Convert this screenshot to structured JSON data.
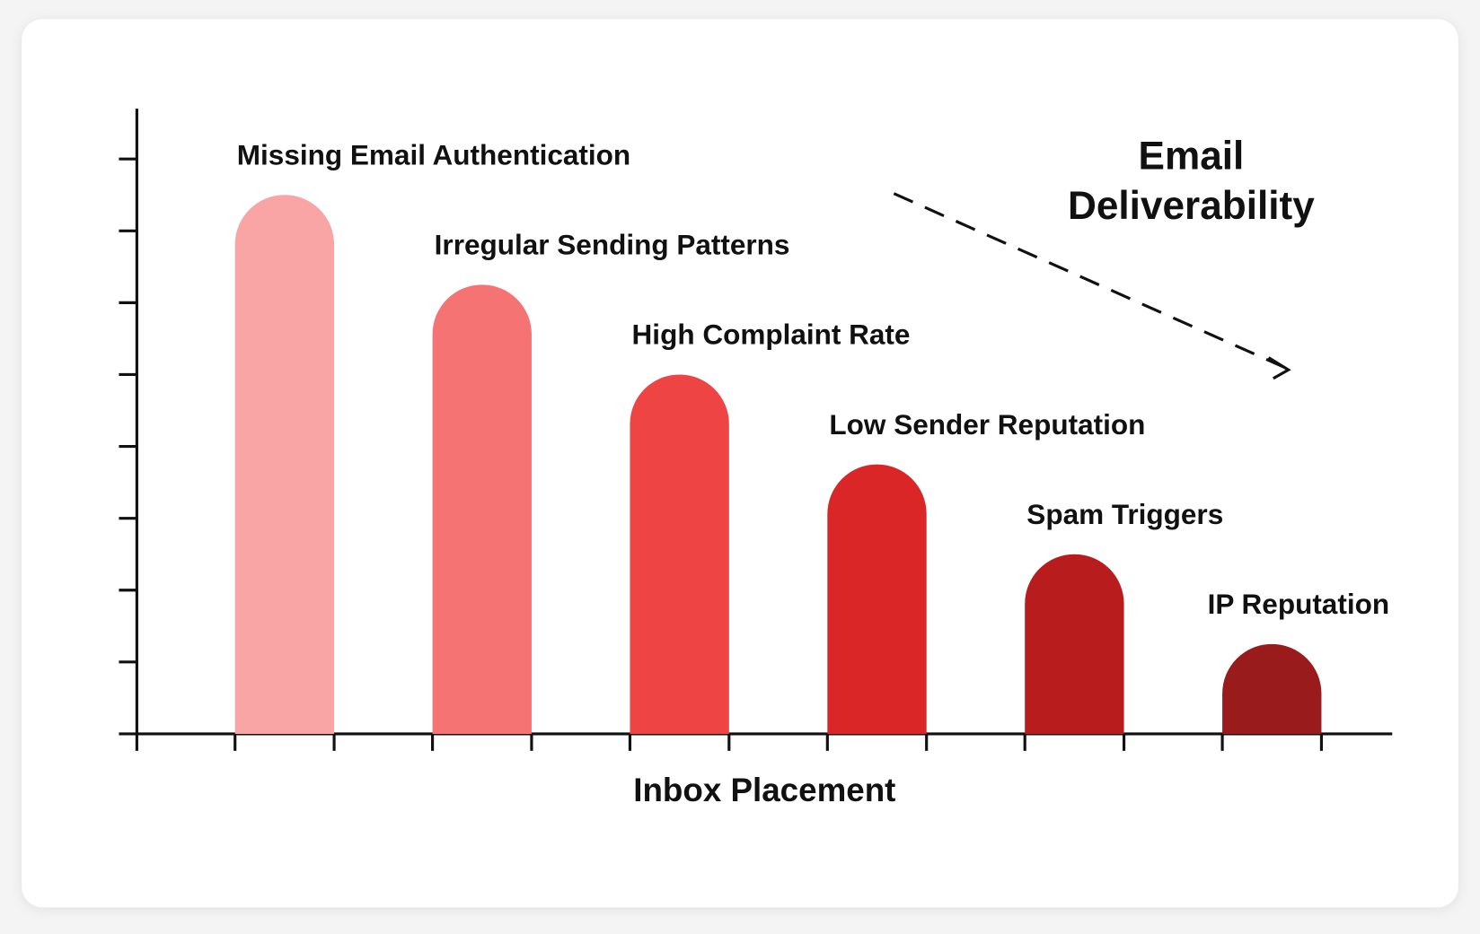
{
  "chart_data": {
    "type": "bar",
    "title": "Email Deliverability",
    "x_label": "Inbox Placement",
    "categories": [
      "Missing Email Authentication",
      "Irregular Sending Patterns",
      "High Complaint Rate",
      "Low Sender Reputation",
      "Spam Triggers",
      "IP Reputation"
    ],
    "values": [
      7.5,
      6.25,
      5,
      3.75,
      2.5,
      1.25
    ],
    "colors": [
      "#f9a5a5",
      "#f57373",
      "#ee4444",
      "#da2626",
      "#b91c1c",
      "#991b1b"
    ],
    "ylim": [
      0,
      8.7
    ],
    "yticks": [
      1,
      2,
      3,
      4,
      5,
      6,
      7,
      8
    ]
  }
}
